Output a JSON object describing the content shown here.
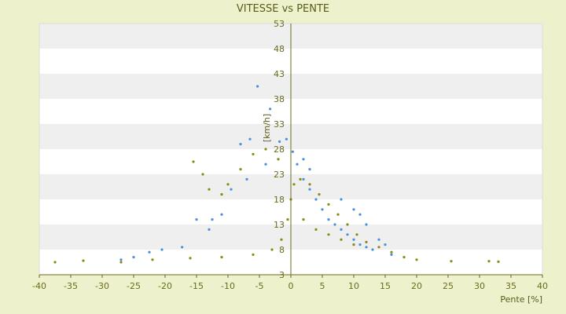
{
  "chart_data": {
    "type": "scatter",
    "title": "VITESSE vs PENTE",
    "xlabel": "Pente [%]",
    "ylabel": "[km/h]",
    "xlim": [
      -40,
      40
    ],
    "ylim": [
      3,
      53
    ],
    "x_ticks": [
      -40,
      -35,
      -30,
      -25,
      -20,
      -15,
      -10,
      -5,
      0,
      5,
      10,
      15,
      20,
      25,
      30,
      35,
      40
    ],
    "y_ticks": [
      3,
      8,
      13,
      18,
      23,
      28,
      33,
      38,
      43,
      48,
      53
    ],
    "grid": "horizontal alternating bands",
    "colors": {
      "series_blue": "#4a90d9",
      "series_olive": "#8a8a10",
      "band_light": "#ffffff",
      "band_dark": "#efefef",
      "background": "#eef2cc",
      "axis": "#6b6b20"
    },
    "series": [
      {
        "color": "#4a90d9",
        "points": [
          [
            -5.3,
            40.5
          ],
          [
            -3.3,
            36
          ],
          [
            -1.8,
            29.5
          ],
          [
            -0.7,
            30
          ],
          [
            0.3,
            27.5
          ],
          [
            -6.5,
            30
          ],
          [
            -8,
            29
          ],
          [
            -9.5,
            20
          ],
          [
            -11,
            15
          ],
          [
            -12.5,
            14
          ],
          [
            -17.3,
            8.5
          ],
          [
            -20.5,
            8
          ],
          [
            -22.5,
            7.5
          ],
          [
            -27,
            6
          ],
          [
            -25,
            6.5
          ],
          [
            -15,
            14
          ],
          [
            -13,
            12
          ],
          [
            -7,
            22
          ],
          [
            -4,
            25
          ],
          [
            -2,
            26
          ],
          [
            1,
            25
          ],
          [
            2,
            22
          ],
          [
            3,
            20
          ],
          [
            4,
            18
          ],
          [
            5,
            16
          ],
          [
            6,
            14
          ],
          [
            7,
            13
          ],
          [
            8,
            12
          ],
          [
            9,
            11
          ],
          [
            10,
            10
          ],
          [
            11,
            9
          ],
          [
            12,
            8.5
          ],
          [
            13,
            8
          ],
          [
            14,
            10
          ],
          [
            15,
            9
          ],
          [
            16,
            7
          ],
          [
            10,
            16
          ],
          [
            11,
            15
          ],
          [
            12,
            13
          ],
          [
            8,
            18
          ],
          [
            3,
            24
          ],
          [
            2,
            26
          ]
        ]
      },
      {
        "color": "#8a8a10",
        "points": [
          [
            -37.5,
            5.5
          ],
          [
            -33,
            5.8
          ],
          [
            -27,
            5.5
          ],
          [
            -22,
            6
          ],
          [
            -16,
            6.3
          ],
          [
            -11,
            6.5
          ],
          [
            -6,
            7
          ],
          [
            -3,
            8
          ],
          [
            -1.5,
            10
          ],
          [
            -0.5,
            14
          ],
          [
            0,
            18
          ],
          [
            0.5,
            21
          ],
          [
            1.5,
            22
          ],
          [
            3,
            21
          ],
          [
            4.5,
            19
          ],
          [
            6,
            17
          ],
          [
            7.5,
            15
          ],
          [
            9,
            13
          ],
          [
            10.5,
            11
          ],
          [
            12,
            9.5
          ],
          [
            14,
            8.5
          ],
          [
            16,
            7.5
          ],
          [
            18,
            6.5
          ],
          [
            20,
            6
          ],
          [
            25.5,
            5.7
          ],
          [
            31.5,
            5.7
          ],
          [
            33,
            5.6
          ],
          [
            -15.5,
            25.5
          ],
          [
            -14,
            23
          ],
          [
            -13,
            20
          ],
          [
            -11,
            19
          ],
          [
            -10,
            21
          ],
          [
            -8,
            24
          ],
          [
            -6,
            27
          ],
          [
            -4,
            28
          ],
          [
            -2,
            26
          ],
          [
            2,
            14
          ],
          [
            4,
            12
          ],
          [
            6,
            11
          ],
          [
            8,
            10
          ],
          [
            10,
            9
          ]
        ]
      }
    ]
  }
}
